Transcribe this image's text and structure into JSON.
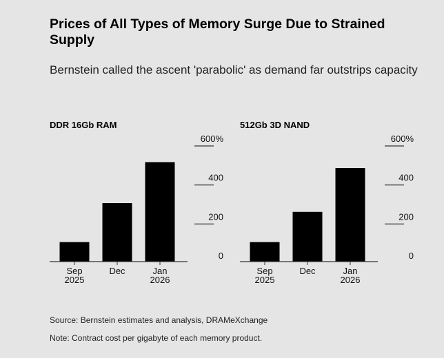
{
  "title": "Prices of All Types of Memory Surge Due to Strained Supply",
  "subtitle": "Bernstein called the ascent 'parabolic' as demand far outstrips capacity",
  "source": "Source: Bernstein estimates and analysis, DRAMeXchange",
  "note": "Note: Contract cost per gigabyte of each memory product.",
  "colors": {
    "background": "#e5e5e5",
    "bar": "#000000",
    "gridline": "#555555"
  },
  "chart_data": [
    {
      "type": "bar",
      "title": "DDR 16Gb RAM",
      "categories": [
        [
          "Sep",
          "2025"
        ],
        [
          "Dec"
        ],
        [
          "Jan",
          "2026"
        ]
      ],
      "values": [
        100,
        300,
        510
      ],
      "ylim": [
        0,
        600
      ],
      "yticks": [
        0,
        200,
        400,
        600
      ],
      "ytick_labels": [
        "0",
        "200",
        "400",
        "600%"
      ],
      "xlabel": "",
      "ylabel": ""
    },
    {
      "type": "bar",
      "title": "512Gb 3D NAND",
      "categories": [
        [
          "Sep",
          "2025"
        ],
        [
          "Dec"
        ],
        [
          "Jan",
          "2026"
        ]
      ],
      "values": [
        100,
        255,
        480
      ],
      "ylim": [
        0,
        600
      ],
      "yticks": [
        0,
        200,
        400,
        600
      ],
      "ytick_labels": [
        "0",
        "200",
        "400",
        "600%"
      ],
      "xlabel": "",
      "ylabel": ""
    }
  ]
}
